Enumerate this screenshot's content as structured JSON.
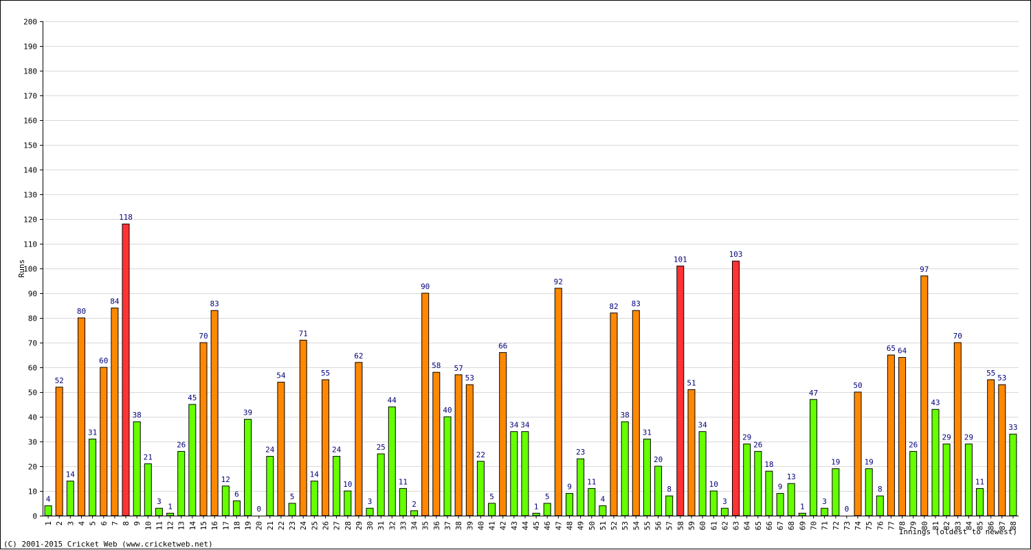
{
  "chart_data": {
    "type": "bar",
    "ylabel": "Runs",
    "xlabel": "Innings (oldest to newest)",
    "ylim": [
      0,
      200
    ],
    "y_ticks": [
      0,
      10,
      20,
      30,
      40,
      50,
      60,
      70,
      80,
      90,
      100,
      110,
      120,
      130,
      140,
      150,
      160,
      170,
      180,
      190,
      200
    ],
    "grid": true,
    "data_labels": true,
    "colors": {
      "under_50": "#66ff00",
      "fifty_to_99": "#ff8800",
      "hundred_plus": "#ff3333",
      "label_text": "#00007a"
    },
    "categories": [
      "1",
      "2",
      "3",
      "4",
      "5",
      "6",
      "7",
      "8",
      "9",
      "10",
      "11",
      "12",
      "13",
      "14",
      "15",
      "16",
      "17",
      "18",
      "19",
      "20",
      "21",
      "22",
      "23",
      "24",
      "25",
      "26",
      "27",
      "28",
      "29",
      "30",
      "31",
      "32",
      "33",
      "34",
      "35",
      "36",
      "37",
      "38",
      "39",
      "40",
      "41",
      "42",
      "43",
      "44",
      "45",
      "46",
      "47",
      "48",
      "49",
      "50",
      "51",
      "52",
      "53",
      "54",
      "55",
      "56",
      "57",
      "58",
      "59",
      "60",
      "61",
      "62",
      "63",
      "64",
      "65",
      "66",
      "67",
      "68",
      "69",
      "70",
      "71",
      "72",
      "73",
      "74",
      "75",
      "76",
      "77",
      "78",
      "79",
      "80",
      "81",
      "82",
      "83",
      "84",
      "85",
      "86",
      "87",
      "88"
    ],
    "values": [
      4,
      52,
      14,
      80,
      31,
      60,
      84,
      118,
      38,
      21,
      3,
      1,
      26,
      45,
      70,
      83,
      12,
      6,
      39,
      0,
      24,
      54,
      5,
      71,
      14,
      55,
      24,
      10,
      62,
      3,
      25,
      44,
      11,
      2,
      90,
      58,
      40,
      57,
      53,
      22,
      5,
      66,
      34,
      34,
      1,
      5,
      92,
      9,
      23,
      11,
      4,
      82,
      38,
      83,
      31,
      20,
      8,
      101,
      51,
      34,
      10,
      3,
      103,
      29,
      26,
      18,
      9,
      13,
      1,
      47,
      3,
      19,
      0,
      50,
      19,
      8,
      65,
      64,
      26,
      97,
      43,
      29,
      70,
      29,
      11,
      55,
      53,
      33
    ]
  },
  "footer": "(C) 2001-2015 Cricket Web (www.cricketweb.net)"
}
